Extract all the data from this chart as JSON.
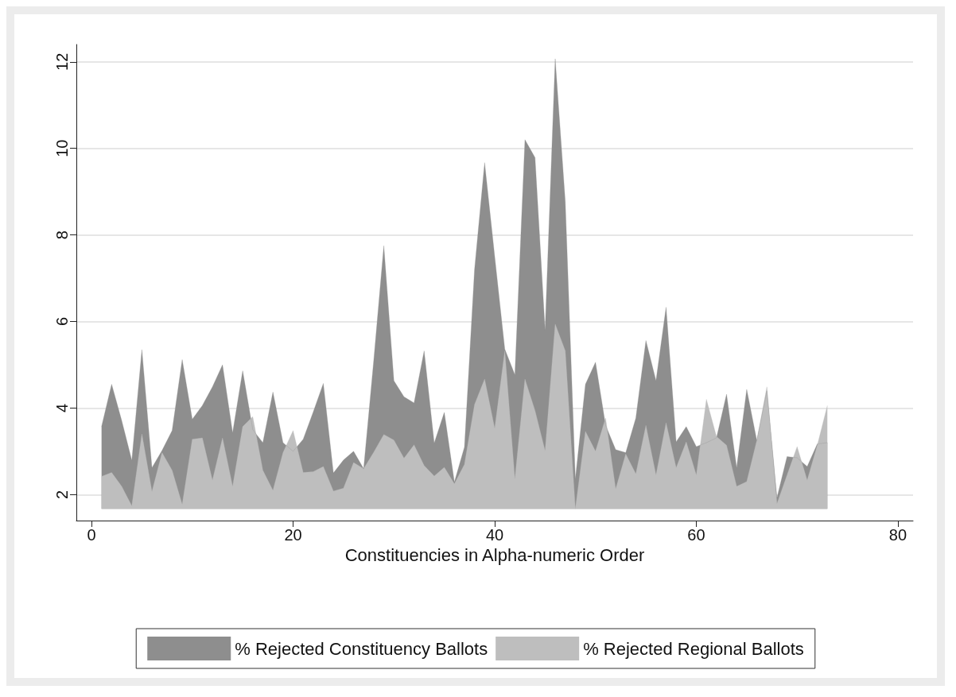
{
  "chart_data": {
    "type": "area",
    "xlabel": "Constituencies in Alpha-numeric Order",
    "x": [
      1,
      2,
      3,
      4,
      5,
      6,
      7,
      8,
      9,
      10,
      11,
      12,
      13,
      14,
      15,
      16,
      17,
      18,
      19,
      20,
      21,
      22,
      23,
      24,
      25,
      26,
      27,
      28,
      29,
      30,
      31,
      32,
      33,
      34,
      35,
      36,
      37,
      38,
      39,
      40,
      41,
      42,
      43,
      44,
      45,
      46,
      47,
      48,
      49,
      50,
      51,
      52,
      53,
      54,
      55,
      56,
      57,
      58,
      59,
      60,
      61,
      62,
      63,
      64,
      65,
      66,
      67,
      68,
      69,
      70,
      71,
      72,
      73
    ],
    "series": [
      {
        "name": "% Rejected Constituency Ballots",
        "color": "#8e8e8e",
        "values": [
          3.57,
          4.55,
          3.71,
          2.79,
          5.35,
          2.62,
          3.02,
          3.48,
          5.12,
          3.74,
          4.06,
          4.49,
          5.0,
          3.43,
          4.86,
          3.5,
          3.2,
          4.37,
          3.2,
          3.0,
          3.28,
          3.91,
          4.57,
          2.5,
          2.8,
          3.0,
          2.6,
          5.1,
          7.75,
          4.63,
          4.26,
          4.12,
          5.32,
          3.19,
          3.9,
          2.29,
          3.1,
          7.2,
          9.67,
          7.5,
          5.36,
          4.77,
          10.2,
          9.79,
          5.8,
          12.07,
          8.77,
          2.36,
          4.55,
          5.06,
          3.6,
          3.04,
          2.97,
          3.77,
          5.56,
          4.63,
          6.33,
          3.22,
          3.57,
          3.11,
          3.2,
          3.31,
          4.32,
          2.62,
          4.43,
          3.25,
          4.4,
          1.93,
          2.88,
          2.85,
          2.65,
          3.17,
          3.2
        ]
      },
      {
        "name": "% Rejected Regional Ballots",
        "color": "#bebebe",
        "values": [
          2.42,
          2.51,
          2.19,
          1.74,
          3.4,
          2.07,
          2.97,
          2.56,
          1.77,
          3.28,
          3.31,
          2.33,
          3.31,
          2.19,
          3.57,
          3.8,
          2.56,
          2.1,
          2.97,
          3.48,
          2.51,
          2.53,
          2.65,
          2.08,
          2.15,
          2.74,
          2.6,
          2.98,
          3.39,
          3.26,
          2.84,
          3.15,
          2.67,
          2.43,
          2.63,
          2.25,
          2.7,
          4.08,
          4.67,
          3.53,
          5.32,
          2.36,
          4.67,
          3.94,
          3.01,
          5.94,
          5.32,
          1.67,
          3.46,
          3.0,
          3.77,
          2.13,
          2.94,
          2.48,
          3.6,
          2.45,
          3.66,
          2.62,
          3.22,
          2.45,
          4.2,
          3.34,
          3.14,
          2.19,
          2.3,
          3.25,
          4.49,
          1.79,
          2.45,
          3.11,
          2.33,
          3.14,
          4.06
        ]
      }
    ],
    "xlim": [
      -1.5,
      81.5
    ],
    "xticks": [
      0,
      20,
      40,
      60,
      80
    ],
    "ylim": [
      1.4,
      12.4
    ],
    "yticks": [
      2,
      4,
      6,
      8,
      10,
      12
    ],
    "grid": "y",
    "legend": "bottom"
  }
}
